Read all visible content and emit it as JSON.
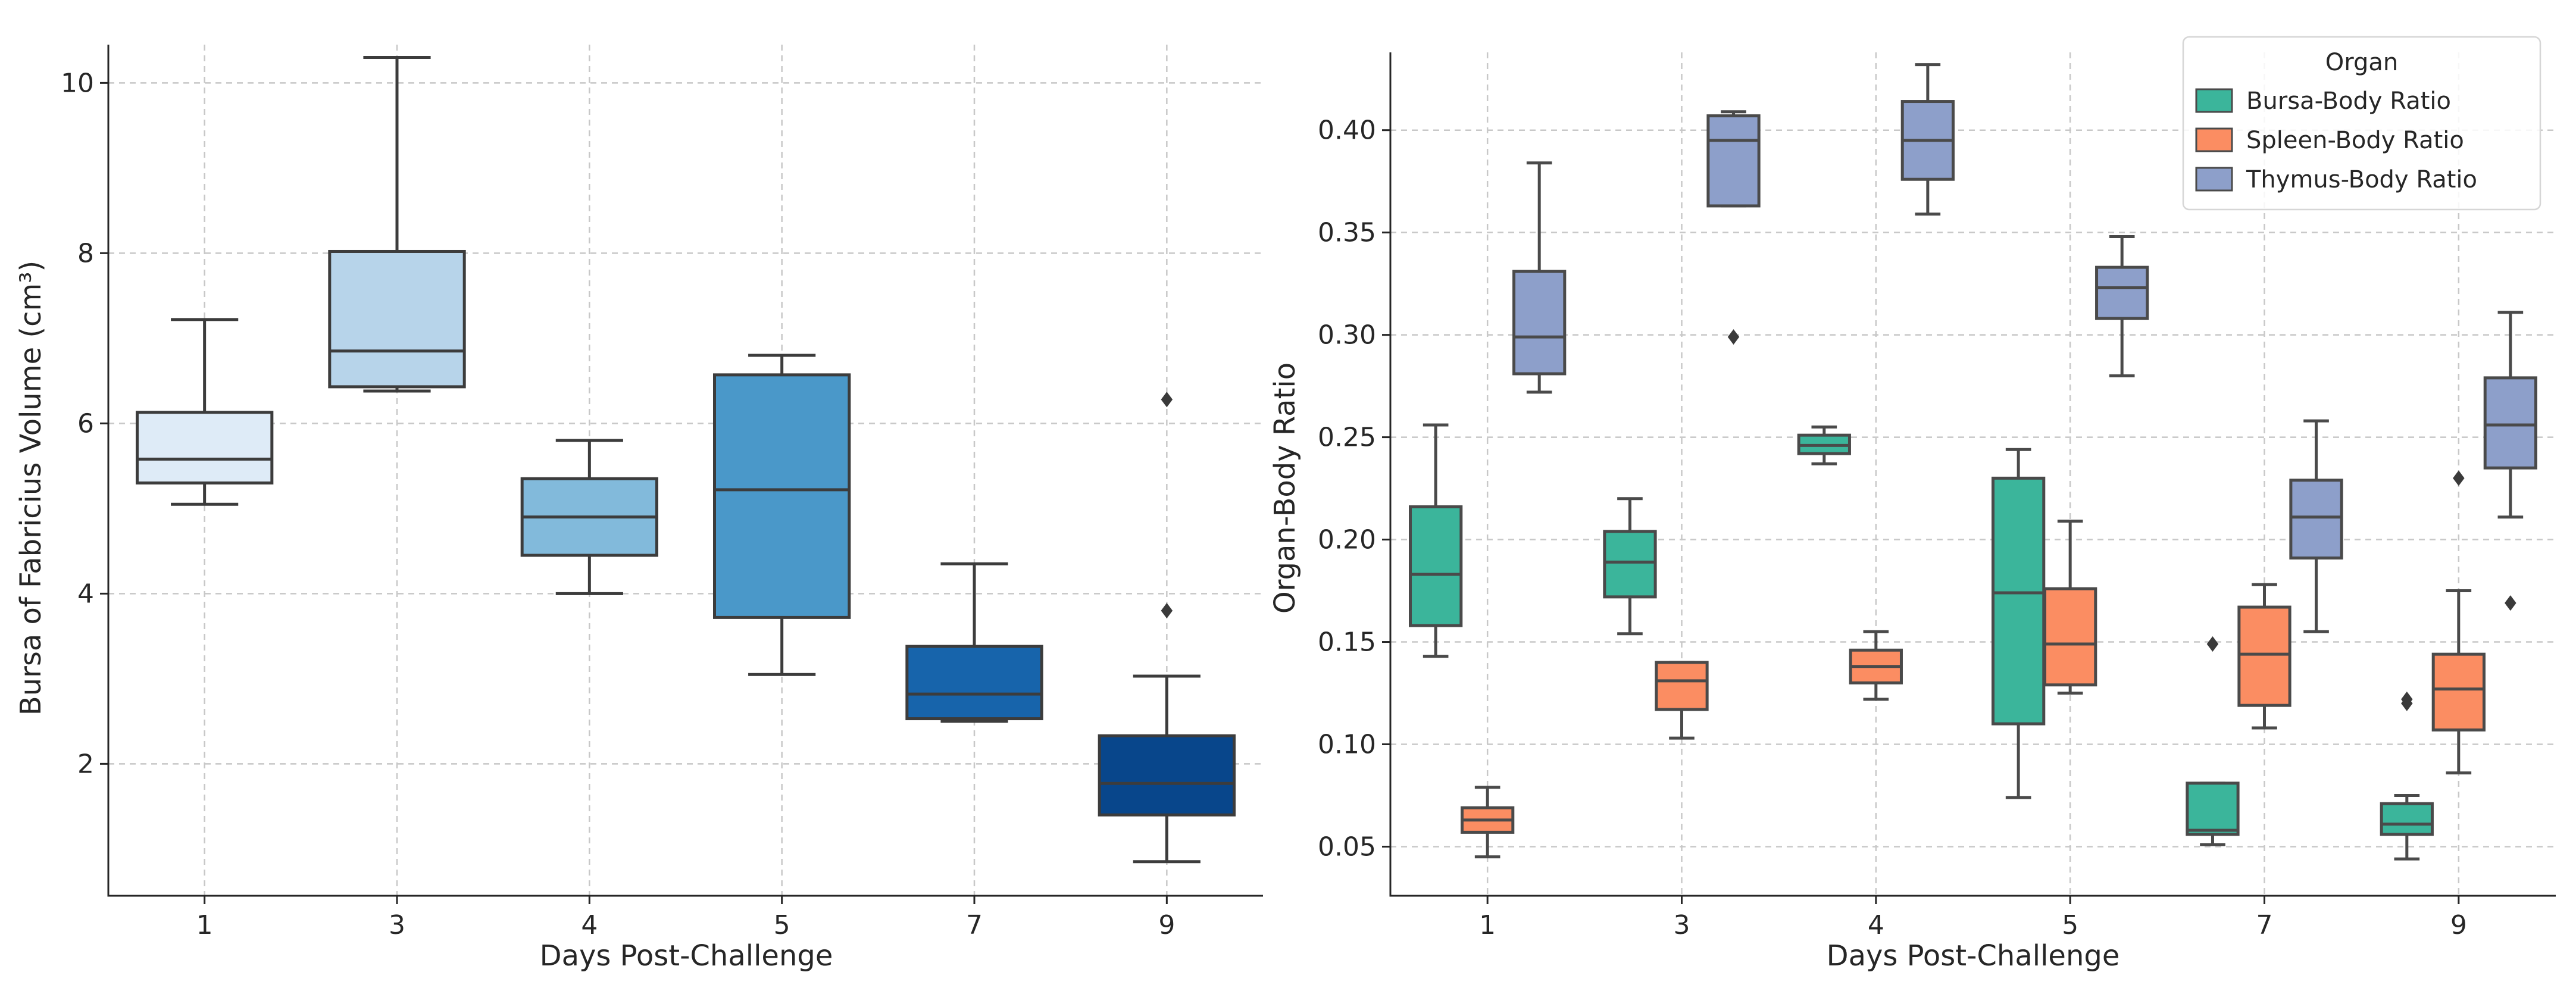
{
  "chart_data": [
    {
      "type": "box",
      "xlabel": "Days Post-Challenge",
      "ylabel": "Bursa of Fabricius Volume (cm³)",
      "categories": [
        "1",
        "3",
        "4",
        "5",
        "7",
        "9"
      ],
      "ylim": [
        0.45,
        10.45
      ],
      "yticks": [
        2,
        4,
        6,
        8,
        10
      ],
      "grid": true,
      "boxes": [
        {
          "category": "1",
          "whisker_low": 5.05,
          "q1": 5.3,
          "median": 5.58,
          "q3": 6.13,
          "whisker_high": 7.22,
          "outliers": [],
          "color": "#deebf7"
        },
        {
          "category": "3",
          "whisker_low": 6.38,
          "q1": 6.43,
          "median": 6.85,
          "q3": 8.02,
          "whisker_high": 10.3,
          "outliers": [],
          "color": "#b7d4ea"
        },
        {
          "category": "4",
          "whisker_low": 4.0,
          "q1": 4.45,
          "median": 4.9,
          "q3": 5.35,
          "whisker_high": 5.8,
          "outliers": [],
          "color": "#82badb"
        },
        {
          "category": "5",
          "whisker_low": 3.05,
          "q1": 3.72,
          "median": 5.22,
          "q3": 6.57,
          "whisker_high": 6.8,
          "outliers": [],
          "color": "#4a98c9"
        },
        {
          "category": "7",
          "whisker_low": 2.5,
          "q1": 2.53,
          "median": 2.82,
          "q3": 3.38,
          "whisker_high": 4.35,
          "outliers": [],
          "color": "#1764ab"
        },
        {
          "category": "9",
          "whisker_low": 0.85,
          "q1": 1.4,
          "median": 1.77,
          "q3": 2.33,
          "whisker_high": 3.03,
          "outliers": [
            3.8,
            6.28
          ],
          "color": "#08468b"
        }
      ]
    },
    {
      "type": "box",
      "xlabel": "Days Post-Challenge",
      "ylabel": "Organ-Body Ratio",
      "categories": [
        "1",
        "3",
        "4",
        "5",
        "7",
        "9"
      ],
      "ylim": [
        0.026,
        0.438
      ],
      "yticks": [
        0.05,
        0.1,
        0.15,
        0.2,
        0.25,
        0.3,
        0.35,
        0.4
      ],
      "grid": true,
      "legend": {
        "title": "Organ",
        "location": "top-right"
      },
      "series": [
        {
          "name": "Bursa-Body Ratio",
          "color": "#3bb59b",
          "boxes": [
            {
              "category": "1",
              "whisker_low": 0.143,
              "q1": 0.158,
              "median": 0.183,
              "q3": 0.216,
              "whisker_high": 0.256,
              "outliers": []
            },
            {
              "category": "3",
              "whisker_low": 0.154,
              "q1": 0.172,
              "median": 0.189,
              "q3": 0.204,
              "whisker_high": 0.22,
              "outliers": []
            },
            {
              "category": "4",
              "whisker_low": 0.237,
              "q1": 0.242,
              "median": 0.246,
              "q3": 0.251,
              "whisker_high": 0.255,
              "outliers": []
            },
            {
              "category": "5",
              "whisker_low": 0.074,
              "q1": 0.11,
              "median": 0.174,
              "q3": 0.23,
              "whisker_high": 0.244,
              "outliers": []
            },
            {
              "category": "7",
              "whisker_low": 0.051,
              "q1": 0.056,
              "median": 0.058,
              "q3": 0.081,
              "whisker_high": 0.081,
              "outliers": [
                0.149
              ]
            },
            {
              "category": "9",
              "whisker_low": 0.044,
              "q1": 0.056,
              "median": 0.061,
              "q3": 0.071,
              "whisker_high": 0.075,
              "outliers": [
                0.12,
                0.122
              ]
            }
          ]
        },
        {
          "name": "Spleen-Body Ratio",
          "color": "#fb8d62",
          "boxes": [
            {
              "category": "1",
              "whisker_low": 0.045,
              "q1": 0.057,
              "median": 0.063,
              "q3": 0.069,
              "whisker_high": 0.079,
              "outliers": []
            },
            {
              "category": "3",
              "whisker_low": 0.103,
              "q1": 0.117,
              "median": 0.131,
              "q3": 0.14,
              "whisker_high": 0.14,
              "outliers": []
            },
            {
              "category": "4",
              "whisker_low": 0.122,
              "q1": 0.13,
              "median": 0.138,
              "q3": 0.146,
              "whisker_high": 0.155,
              "outliers": []
            },
            {
              "category": "5",
              "whisker_low": 0.125,
              "q1": 0.129,
              "median": 0.149,
              "q3": 0.176,
              "whisker_high": 0.209,
              "outliers": []
            },
            {
              "category": "7",
              "whisker_low": 0.108,
              "q1": 0.119,
              "median": 0.144,
              "q3": 0.167,
              "whisker_high": 0.178,
              "outliers": []
            },
            {
              "category": "9",
              "whisker_low": 0.086,
              "q1": 0.107,
              "median": 0.127,
              "q3": 0.144,
              "whisker_high": 0.175,
              "outliers": [
                0.23
              ]
            }
          ]
        },
        {
          "name": "Thymus-Body Ratio",
          "color": "#8d9fca",
          "boxes": [
            {
              "category": "1",
              "whisker_low": 0.272,
              "q1": 0.281,
              "median": 0.299,
              "q3": 0.331,
              "whisker_high": 0.384,
              "outliers": []
            },
            {
              "category": "3",
              "whisker_low": 0.363,
              "q1": 0.363,
              "median": 0.395,
              "q3": 0.407,
              "whisker_high": 0.409,
              "outliers": [
                0.299
              ]
            },
            {
              "category": "4",
              "whisker_low": 0.359,
              "q1": 0.376,
              "median": 0.395,
              "q3": 0.414,
              "whisker_high": 0.432,
              "outliers": []
            },
            {
              "category": "5",
              "whisker_low": 0.28,
              "q1": 0.308,
              "median": 0.323,
              "q3": 0.333,
              "whisker_high": 0.348,
              "outliers": []
            },
            {
              "category": "7",
              "whisker_low": 0.155,
              "q1": 0.191,
              "median": 0.211,
              "q3": 0.229,
              "whisker_high": 0.258,
              "outliers": []
            },
            {
              "category": "9",
              "whisker_low": 0.211,
              "q1": 0.235,
              "median": 0.256,
              "q3": 0.279,
              "whisker_high": 0.311,
              "outliers": [
                0.169
              ]
            }
          ]
        }
      ]
    }
  ]
}
